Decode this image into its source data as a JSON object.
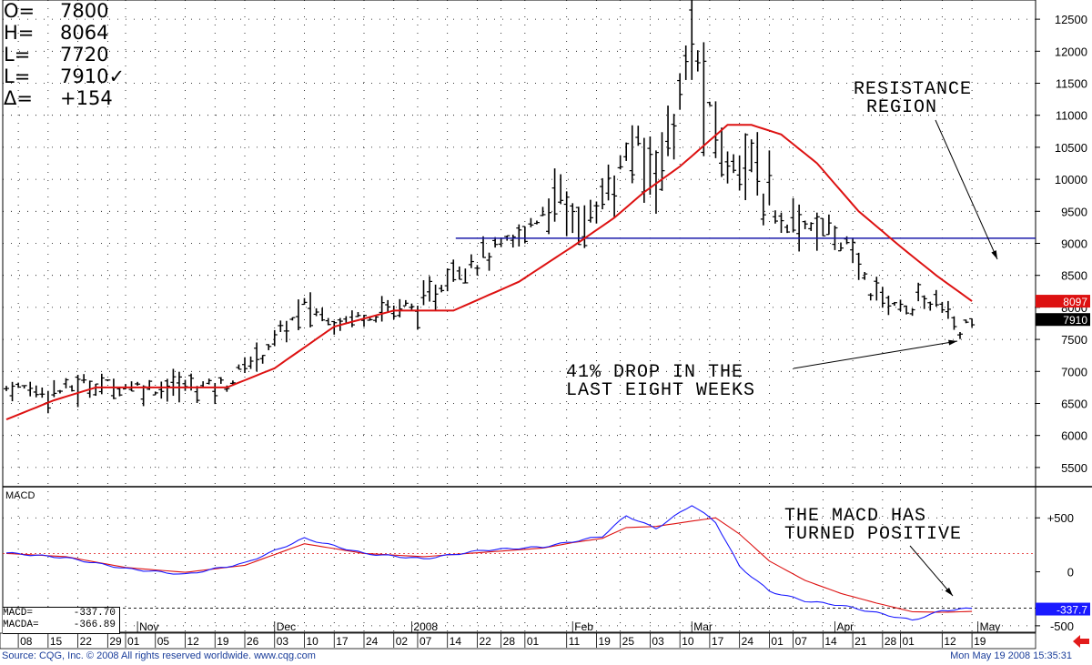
{
  "readout": {
    "rows": [
      {
        "key": "O=",
        "value": "7800"
      },
      {
        "key": "H=",
        "value": "8064"
      },
      {
        "key": "L=",
        "value": "7720"
      },
      {
        "key": "L=",
        "value": "7910✓"
      },
      {
        "key": "Δ=",
        "value": "+154"
      }
    ]
  },
  "macd_readout": {
    "macd_label": "MACD=",
    "macd_value": "-337.70",
    "macda_label": "MACDA=",
    "macda_value": "-366.89"
  },
  "footer": {
    "left": "Source: CQG, Inc. © 2008 All rights reserved worldwide. www.cqg.com",
    "right": "Mon May 19 2008 15:35:31"
  },
  "colors": {
    "ma": "#dd1111",
    "macd": "#1a1aff",
    "macda": "#dd1111",
    "resistance": "#1a1aaa",
    "bars": "#000000",
    "tag_ma": "#dd1111",
    "tag_last": "#000000",
    "tag_macd": "#1a1aff",
    "footer_text": "#1a3d9a"
  },
  "chart_data": [
    {
      "type": "ohlc",
      "ylim": [
        5200,
        12800
      ],
      "yticks": [
        5500,
        6000,
        6500,
        7000,
        7500,
        8000,
        8500,
        9000,
        9500,
        10000,
        10500,
        11000,
        11500,
        12000,
        12500
      ],
      "month_labels": [
        {
          "label": "Nov",
          "index": 22
        },
        {
          "label": "Dec",
          "index": 45
        },
        {
          "label": "2008",
          "index": 68
        },
        {
          "label": "Feb",
          "index": 95
        },
        {
          "label": "Mar",
          "index": 115
        },
        {
          "label": "Apr",
          "index": 139
        },
        {
          "label": "May",
          "index": 163
        }
      ],
      "week_labels": [
        {
          "label": "08",
          "index": 2
        },
        {
          "label": "15",
          "index": 7
        },
        {
          "label": "22",
          "index": 12
        },
        {
          "label": "29",
          "index": 17
        },
        {
          "label": "01",
          "index": 20
        },
        {
          "label": "05",
          "index": 25
        },
        {
          "label": "12",
          "index": 30
        },
        {
          "label": "19",
          "index": 35
        },
        {
          "label": "26",
          "index": 40
        },
        {
          "label": "03",
          "index": 45
        },
        {
          "label": "10",
          "index": 50
        },
        {
          "label": "17",
          "index": 55
        },
        {
          "label": "24",
          "index": 60
        },
        {
          "label": "02",
          "index": 65
        },
        {
          "label": "07",
          "index": 69
        },
        {
          "label": "14",
          "index": 74
        },
        {
          "label": "22",
          "index": 79
        },
        {
          "label": "28",
          "index": 83
        },
        {
          "label": "01",
          "index": 87
        },
        {
          "label": "11",
          "index": 94
        },
        {
          "label": "19",
          "index": 99
        },
        {
          "label": "25",
          "index": 103
        },
        {
          "label": "03",
          "index": 108
        },
        {
          "label": "10",
          "index": 113
        },
        {
          "label": "17",
          "index": 118
        },
        {
          "label": "24",
          "index": 123
        },
        {
          "label": "01",
          "index": 128
        },
        {
          "label": "07",
          "index": 132
        },
        {
          "label": "14",
          "index": 137
        },
        {
          "label": "21",
          "index": 142
        },
        {
          "label": "28",
          "index": 147
        },
        {
          "label": "01",
          "index": 150
        },
        {
          "label": "12",
          "index": 157
        },
        {
          "label": "19",
          "index": 162
        }
      ],
      "resistance": 9080,
      "ma_last": "8097",
      "last_price": "7910",
      "ma_keypoints": [
        [
          0,
          6250
        ],
        [
          8,
          6550
        ],
        [
          15,
          6750
        ],
        [
          25,
          6750
        ],
        [
          37,
          6750
        ],
        [
          45,
          7050
        ],
        [
          55,
          7700
        ],
        [
          65,
          7950
        ],
        [
          75,
          7950
        ],
        [
          86,
          8400
        ],
        [
          95,
          8950
        ],
        [
          102,
          9400
        ],
        [
          107,
          9800
        ],
        [
          113,
          10200
        ],
        [
          121,
          10850
        ],
        [
          125,
          10850
        ],
        [
          130,
          10700
        ],
        [
          136,
          10250
        ],
        [
          143,
          9500
        ],
        [
          150,
          8950
        ],
        [
          156,
          8500
        ],
        [
          162,
          8097
        ]
      ],
      "price_keypoints": [
        [
          0,
          6750
        ],
        [
          8,
          6700
        ],
        [
          15,
          6800
        ],
        [
          25,
          6750
        ],
        [
          37,
          6800
        ],
        [
          45,
          7500
        ],
        [
          50,
          8000
        ],
        [
          55,
          7800
        ],
        [
          60,
          7900
        ],
        [
          65,
          8000
        ],
        [
          70,
          8000
        ],
        [
          75,
          8600
        ],
        [
          80,
          8800
        ],
        [
          85,
          9000
        ],
        [
          88,
          9300
        ],
        [
          93,
          9800
        ],
        [
          96,
          9300
        ],
        [
          100,
          9600
        ],
        [
          105,
          10500
        ],
        [
          108,
          10200
        ],
        [
          112,
          10800
        ],
        [
          115,
          12100
        ],
        [
          118,
          11000
        ],
        [
          121,
          10200
        ],
        [
          124,
          10500
        ],
        [
          127,
          9700
        ],
        [
          130,
          9400
        ],
        [
          135,
          9300
        ],
        [
          140,
          9100
        ],
        [
          145,
          8300
        ],
        [
          150,
          8000
        ],
        [
          156,
          8100
        ],
        [
          160,
          7600
        ],
        [
          162,
          7910
        ]
      ],
      "annotations": [
        {
          "lines": [
            "RESISTANCE",
            "REGION"
          ]
        },
        {
          "lines": [
            "41% DROP IN THE",
            "LAST EIGHT WEEKS"
          ]
        }
      ]
    },
    {
      "type": "line",
      "title": "MACD",
      "ylim": [
        -560,
        780
      ],
      "yticks": [
        {
          "value": 500,
          "label": "+500"
        },
        {
          "value": 0,
          "label": "0"
        },
        {
          "value": -500,
          "label": "-500"
        }
      ],
      "series": [
        {
          "name": "MACD",
          "last": "-337.7",
          "keypoints": [
            [
              0,
              175
            ],
            [
              10,
              130
            ],
            [
              20,
              30
            ],
            [
              30,
              -25
            ],
            [
              40,
              80
            ],
            [
              50,
              310
            ],
            [
              60,
              170
            ],
            [
              70,
              120
            ],
            [
              80,
              200
            ],
            [
              90,
              230
            ],
            [
              95,
              280
            ],
            [
              100,
              330
            ],
            [
              104,
              520
            ],
            [
              109,
              400
            ],
            [
              115,
              620
            ],
            [
              119,
              460
            ],
            [
              123,
              50
            ],
            [
              128,
              -180
            ],
            [
              134,
              -270
            ],
            [
              140,
              -310
            ],
            [
              146,
              -380
            ],
            [
              152,
              -450
            ],
            [
              157,
              -360
            ],
            [
              162,
              -338
            ]
          ]
        },
        {
          "name": "MACDA",
          "keypoints": [
            [
              0,
              170
            ],
            [
              10,
              140
            ],
            [
              20,
              40
            ],
            [
              30,
              -5
            ],
            [
              40,
              60
            ],
            [
              50,
              260
            ],
            [
              60,
              170
            ],
            [
              70,
              140
            ],
            [
              80,
              180
            ],
            [
              90,
              220
            ],
            [
              95,
              270
            ],
            [
              100,
              310
            ],
            [
              104,
              410
            ],
            [
              109,
              420
            ],
            [
              115,
              470
            ],
            [
              119,
              500
            ],
            [
              123,
              350
            ],
            [
              128,
              100
            ],
            [
              134,
              -80
            ],
            [
              140,
              -200
            ],
            [
              146,
              -290
            ],
            [
              152,
              -370
            ],
            [
              157,
              -375
            ],
            [
              162,
              -367
            ]
          ]
        }
      ],
      "annotations": [
        {
          "lines": [
            "THE MACD HAS",
            "TURNED POSITIVE"
          ]
        }
      ]
    }
  ]
}
